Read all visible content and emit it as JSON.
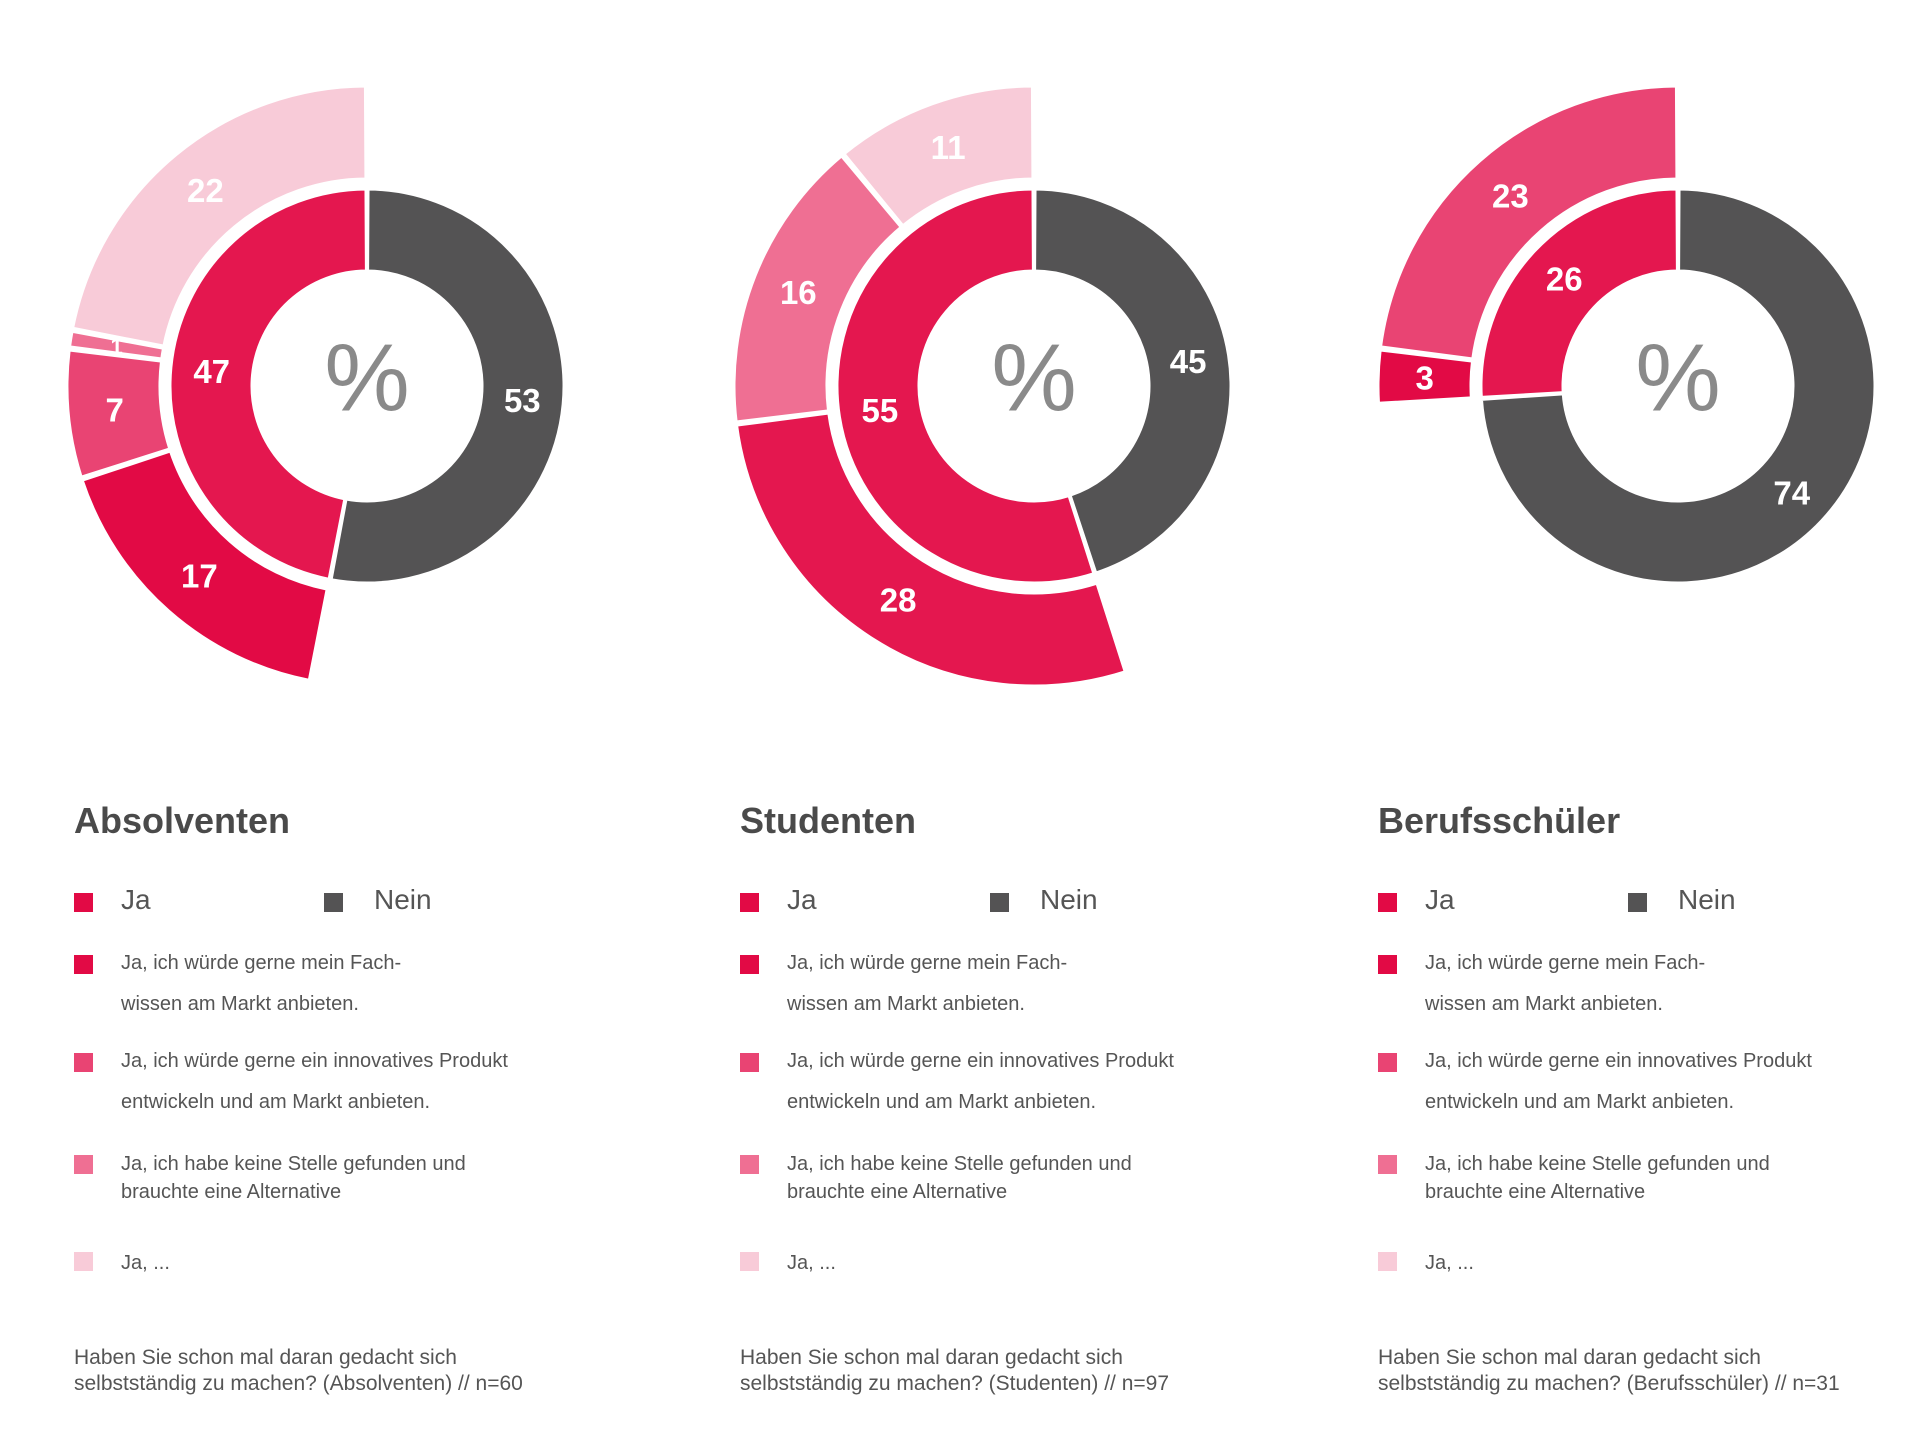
{
  "legend": {
    "ja": "Ja",
    "nein": "Nein",
    "items": [
      "Ja, ich würde gerne mein Fach-\nwissen am Markt anbieten.",
      "Ja, ich würde gerne ein innovatives Produkt\n entwickeln und am Markt anbieten.",
      "Ja, ich habe keine Stelle gefunden und\nbrauchte eine Alternative",
      "Ja, ..."
    ]
  },
  "colors": {
    "nein": "#545354",
    "ja": "#e4174f",
    "fachwissen": "#e20a45",
    "innovativ": "#e94473",
    "keine_stelle": "#ef6f93",
    "ja_sonstiges": "#f8cbd8"
  },
  "center_symbol": "%",
  "panels": [
    {
      "title": "Absolventen",
      "caption": "Haben Sie schon mal daran gedacht sich\nselbstständig zu machen? (Absolventen) // n=60"
    },
    {
      "title": "Studenten",
      "caption": "Haben Sie schon mal daran gedacht sich\nselbstständig zu machen? (Studenten) // n=97"
    },
    {
      "title": "Berufsschüler",
      "caption": "Haben Sie schon mal daran gedacht sich\nselbstständig zu machen? (Berufsschüler) // n=31"
    }
  ],
  "chart_data": [
    {
      "type": "pie",
      "group": "Absolventen",
      "inner": [
        {
          "label": "Nein",
          "value": 53,
          "color": "#545354"
        },
        {
          "label": "Ja",
          "value": 47,
          "color": "#e4174f"
        }
      ],
      "outer": [
        {
          "label": "Ja, ich würde gerne mein Fachwissen am Markt anbieten.",
          "value": 17,
          "color": "#e20a45"
        },
        {
          "label": "Ja, ich würde gerne ein innovatives Produkt entwickeln und am Markt anbieten.",
          "value": 7,
          "color": "#e94473"
        },
        {
          "label": "Ja, ich habe keine Stelle gefunden und brauchte eine Alternative",
          "value": 1,
          "color": "#ef6f93"
        },
        {
          "label": "Ja, ...",
          "value": 22,
          "color": "#f8cbd8"
        }
      ]
    },
    {
      "type": "pie",
      "group": "Studenten",
      "inner": [
        {
          "label": "Nein",
          "value": 45,
          "color": "#545354"
        },
        {
          "label": "Ja",
          "value": 55,
          "color": "#e4174f"
        }
      ],
      "outer": [
        {
          "label": "Ja, ich würde gerne mein Fachwissen am Markt anbieten.",
          "value": 28,
          "color": "#e4174f"
        },
        {
          "label": "Ja, ich habe keine Stelle gefunden und brauchte eine Alternative",
          "value": 16,
          "color": "#ef6f93"
        },
        {
          "label": "Ja, ...",
          "value": 11,
          "color": "#f8cbd8"
        }
      ]
    },
    {
      "type": "pie",
      "group": "Berufsschüler",
      "inner": [
        {
          "label": "Nein",
          "value": 74,
          "color": "#545354"
        },
        {
          "label": "Ja",
          "value": 26,
          "color": "#e4174f"
        }
      ],
      "outer": [
        {
          "label": "Ja, ich würde gerne mein Fachwissen am Markt anbieten.",
          "value": 3,
          "color": "#e20a45"
        },
        {
          "label": "Ja, ich würde gerne ein innovatives Produkt entwickeln und am Markt anbieten.",
          "value": 23,
          "color": "#e94473"
        }
      ]
    }
  ]
}
